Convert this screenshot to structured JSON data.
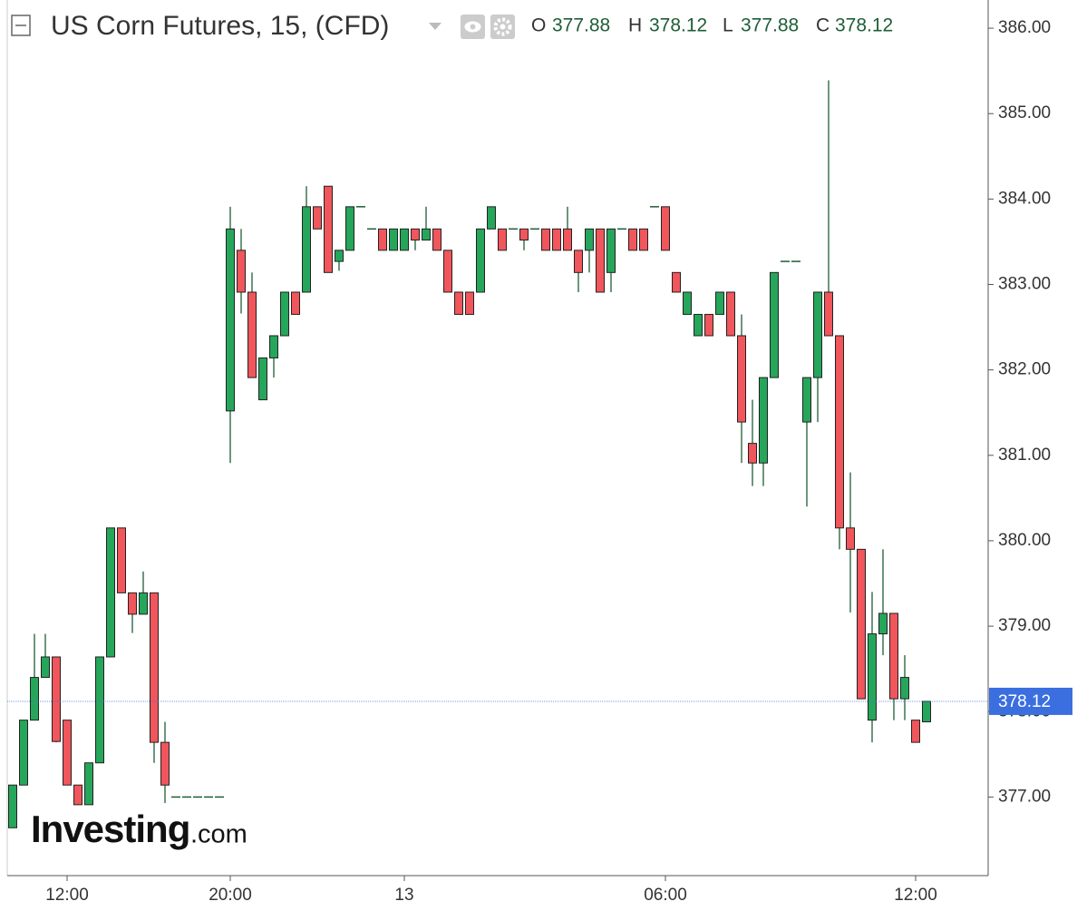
{
  "chart_data": {
    "type": "candlestick",
    "title": "US Corn Futures, 15, (CFD)",
    "header": {
      "labels": [
        "O",
        "H",
        "L",
        "C"
      ],
      "values": [
        377.88,
        378.12,
        377.88,
        378.12
      ]
    },
    "watermark": {
      "brand": "Investing",
      "suffix": ".com"
    },
    "last_price": 378.12,
    "up_color": "#26a65b",
    "down_color": "#f0565b",
    "flat_color": "#1e5e36",
    "border_color": "#222222",
    "last_color": "#3b6fe0",
    "ylim": [
      376.08,
      386.33
    ],
    "yticks": [
      {
        "value": 377,
        "label": "377.00"
      },
      {
        "value": 378,
        "label": "378.00"
      },
      {
        "value": 379,
        "label": "379.00"
      },
      {
        "value": 380,
        "label": "380.00"
      },
      {
        "value": 381,
        "label": "381.00"
      },
      {
        "value": 382,
        "label": "382.00"
      },
      {
        "value": 383,
        "label": "383.00"
      },
      {
        "value": 384,
        "label": "384.00"
      },
      {
        "value": 385,
        "label": "385.00"
      },
      {
        "value": 386,
        "label": "386.00"
      }
    ],
    "categories": [
      null,
      null,
      null,
      null,
      null,
      "12:00",
      null,
      null,
      null,
      null,
      null,
      null,
      null,
      null,
      null,
      null,
      null,
      null,
      null,
      null,
      "20:00",
      null,
      null,
      null,
      null,
      null,
      null,
      null,
      null,
      null,
      null,
      null,
      null,
      null,
      null,
      null,
      "13",
      null,
      null,
      null,
      null,
      null,
      null,
      null,
      null,
      null,
      null,
      null,
      null,
      null,
      null,
      null,
      null,
      null,
      null,
      null,
      null,
      null,
      null,
      null,
      "06:00",
      null,
      null,
      null,
      null,
      null,
      null,
      null,
      null,
      null,
      null,
      null,
      null,
      null,
      null,
      null,
      null,
      null,
      null,
      null,
      null,
      null,
      null,
      "12:00",
      null
    ],
    "open": [
      376.64,
      377.14,
      377.9,
      378.4,
      378.64,
      377.9,
      377.14,
      376.91,
      377.4,
      378.64,
      380.15,
      379.39,
      379.14,
      379.39,
      377.64,
      377,
      377,
      377,
      377,
      377,
      381.52,
      383.4,
      382.91,
      381.65,
      382.14,
      382.4,
      382.91,
      382.91,
      383.91,
      384.15,
      383.27,
      383.4,
      383.91,
      383.65,
      383.65,
      383.4,
      383.4,
      383.65,
      383.52,
      383.65,
      383.4,
      382.91,
      382.91,
      382.91,
      383.65,
      383.65,
      383.65,
      383.65,
      383.65,
      383.65,
      383.65,
      383.65,
      383.4,
      383.4,
      383.65,
      383.14,
      383.65,
      383.65,
      383.65,
      383.91,
      383.91,
      383.14,
      382.65,
      382.4,
      382.65,
      382.65,
      382.91,
      382.4,
      381.14,
      380.91,
      381.91,
      383.27,
      383.27,
      381.39,
      381.91,
      382.91,
      382.4,
      380.15,
      379.9,
      377.9,
      378.91,
      379.15,
      378.15,
      377.9,
      377.88
    ],
    "high": [
      377.14,
      377.9,
      378.91,
      378.91,
      378.64,
      377.9,
      377.14,
      377.4,
      378.64,
      380.15,
      380.15,
      379.39,
      379.64,
      379.39,
      377.88,
      377,
      377,
      377,
      377,
      377,
      383.91,
      383.65,
      383.14,
      382.14,
      382.4,
      382.91,
      382.91,
      384.15,
      383.91,
      384.15,
      383.4,
      383.91,
      383.91,
      383.65,
      383.65,
      383.65,
      383.65,
      383.65,
      383.91,
      383.65,
      383.4,
      382.91,
      382.91,
      383.65,
      383.91,
      383.65,
      383.65,
      383.65,
      383.65,
      383.65,
      383.65,
      383.91,
      383.4,
      383.65,
      383.65,
      383.65,
      383.65,
      383.65,
      383.65,
      383.91,
      383.91,
      383.14,
      382.91,
      382.65,
      382.65,
      382.91,
      382.91,
      382.65,
      381.65,
      381.91,
      383.14,
      383.27,
      383.27,
      381.91,
      382.91,
      385.39,
      382.4,
      380.8,
      379.9,
      379.4,
      379.9,
      379.15,
      378.66,
      377.9,
      378.12
    ],
    "low": [
      376.64,
      377.14,
      377.9,
      378.4,
      377.64,
      377.14,
      376.91,
      376.91,
      377.4,
      378.64,
      379.39,
      378.92,
      379.14,
      377.4,
      376.93,
      377,
      377,
      377,
      377,
      377,
      380.91,
      382.66,
      381.91,
      381.65,
      381.91,
      382.4,
      382.65,
      382.91,
      383.65,
      383.14,
      383.16,
      383.4,
      383.91,
      383.65,
      383.4,
      383.4,
      383.4,
      383.4,
      383.52,
      383.4,
      382.91,
      382.65,
      382.65,
      382.91,
      383.65,
      383.4,
      383.65,
      383.4,
      383.65,
      383.4,
      383.4,
      383.4,
      382.91,
      383.14,
      382.91,
      382.91,
      383.65,
      383.4,
      383.4,
      383.91,
      383.4,
      382.91,
      382.65,
      382.4,
      382.4,
      382.65,
      382.4,
      380.91,
      380.64,
      380.64,
      381.91,
      383.27,
      383.27,
      380.4,
      381.39,
      382.4,
      379.9,
      379.16,
      378.15,
      377.64,
      378.66,
      377.9,
      377.9,
      377.64,
      377.88
    ],
    "close": [
      377.14,
      377.9,
      378.4,
      378.64,
      377.65,
      377.14,
      376.91,
      377.4,
      378.64,
      380.15,
      379.39,
      379.14,
      379.39,
      377.64,
      377.14,
      377,
      377,
      377,
      377,
      377,
      383.65,
      382.91,
      381.91,
      382.14,
      382.4,
      382.91,
      382.65,
      383.91,
      383.65,
      383.14,
      383.4,
      383.91,
      383.91,
      383.65,
      383.4,
      383.65,
      383.65,
      383.52,
      383.65,
      383.4,
      382.91,
      382.65,
      382.65,
      383.65,
      383.91,
      383.4,
      383.65,
      383.52,
      383.65,
      383.4,
      383.4,
      383.4,
      383.14,
      383.65,
      382.91,
      383.65,
      383.65,
      383.4,
      383.4,
      383.91,
      383.4,
      382.91,
      382.91,
      382.65,
      382.4,
      382.91,
      382.4,
      381.39,
      380.91,
      381.91,
      383.14,
      383.27,
      383.27,
      381.91,
      382.91,
      382.4,
      380.15,
      379.9,
      378.15,
      378.91,
      379.15,
      378.15,
      378.4,
      377.64,
      378.12
    ]
  }
}
